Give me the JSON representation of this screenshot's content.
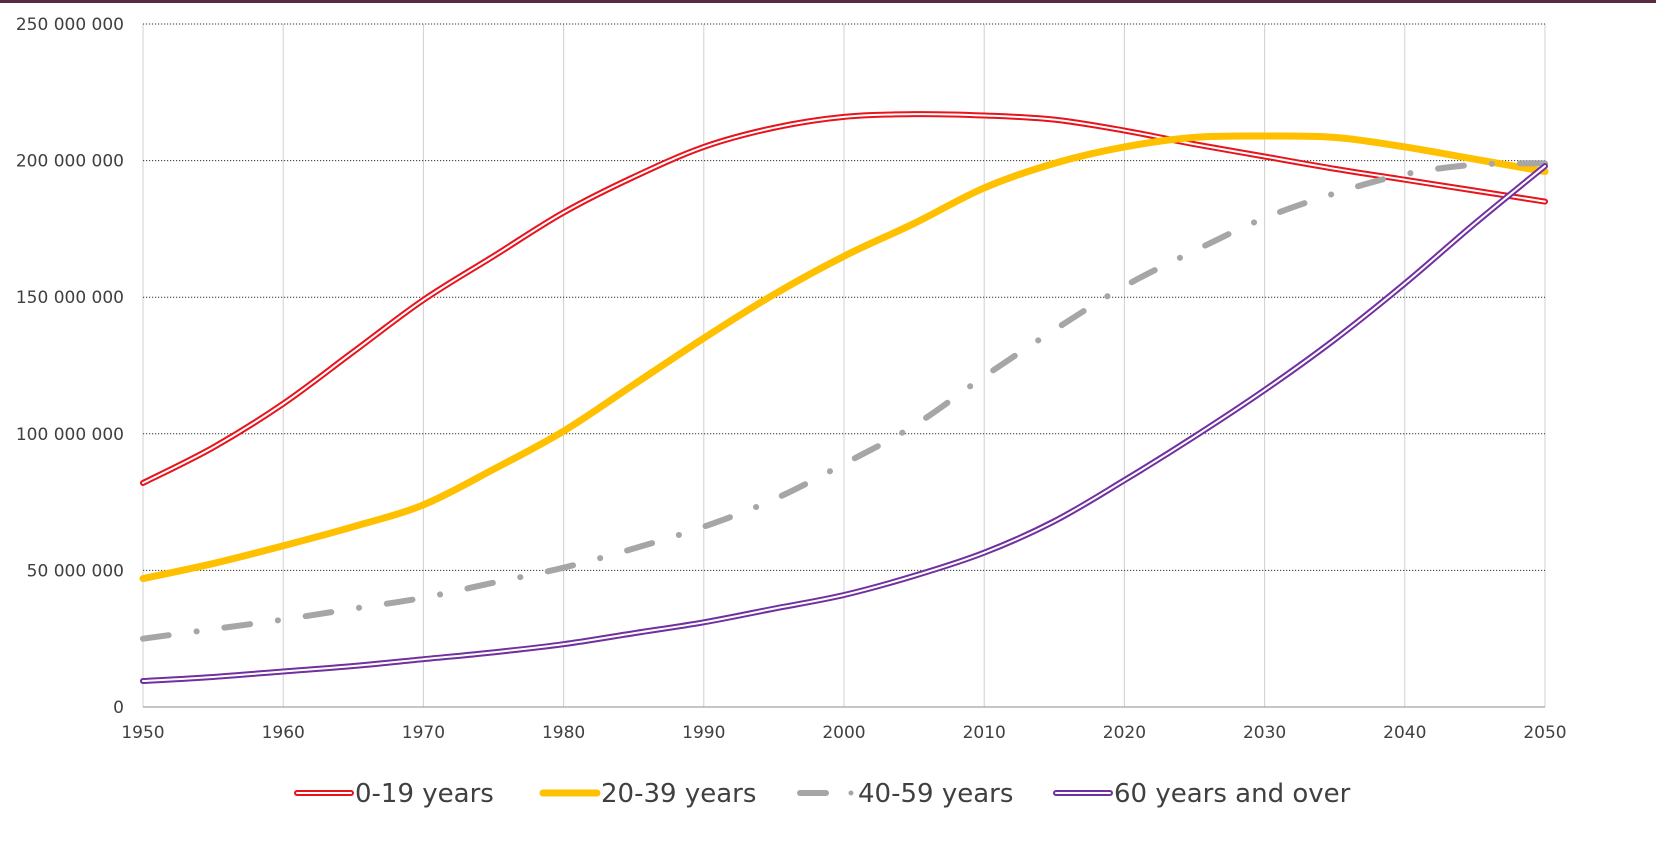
{
  "chart_data": {
    "type": "line",
    "title": "",
    "xlabel": "",
    "ylabel": "",
    "x": [
      1950,
      1955,
      1960,
      1965,
      1970,
      1975,
      1980,
      1985,
      1990,
      1995,
      2000,
      2005,
      2010,
      2015,
      2020,
      2025,
      2030,
      2035,
      2040,
      2045,
      2050
    ],
    "xlim": [
      1950,
      2050
    ],
    "ylim": [
      0,
      250000000
    ],
    "x_ticks": [
      "1950",
      "1960",
      "1970",
      "1980",
      "1990",
      "2000",
      "2010",
      "2020",
      "2030",
      "2040",
      "2050"
    ],
    "y_ticks": [
      "0",
      "50 000 000",
      "100 000 000",
      "150 000 000",
      "200 000 000",
      "250 000 000"
    ],
    "grid": "horizontal dotted, vertical solid light grey",
    "legend_position": "bottom",
    "series": [
      {
        "name": "0-19 years",
        "style": "double-line",
        "color": "#e8141c",
        "values": [
          82000000,
          95000000,
          111000000,
          130000000,
          149000000,
          165000000,
          181000000,
          194000000,
          205000000,
          212000000,
          216000000,
          217000000,
          216500000,
          215000000,
          211000000,
          206000000,
          201500000,
          197000000,
          193000000,
          189000000,
          185000000
        ]
      },
      {
        "name": "20-39 years",
        "style": "thick-solid",
        "color": "#ffc000",
        "values": [
          47000000,
          52500000,
          59000000,
          66000000,
          74000000,
          87000000,
          101000000,
          118000000,
          135000000,
          151000000,
          165000000,
          177000000,
          190000000,
          199000000,
          205000000,
          208500000,
          209000000,
          208500000,
          205000000,
          200500000,
          196000000
        ]
      },
      {
        "name": "40-59 years",
        "style": "dash-dot",
        "color": "#a6a6a6",
        "values": [
          25000000,
          28500000,
          32000000,
          36000000,
          40000000,
          45500000,
          51000000,
          58000000,
          66000000,
          76000000,
          89000000,
          103000000,
          121000000,
          138000000,
          154000000,
          167000000,
          179000000,
          188000000,
          195000000,
          198500000,
          199000000
        ]
      },
      {
        "name": "60 years and over",
        "style": "double-line",
        "color": "#7030a0",
        "values": [
          9500000,
          11000000,
          13000000,
          15000000,
          17500000,
          20000000,
          23000000,
          27000000,
          31000000,
          36000000,
          41000000,
          48000000,
          56500000,
          68000000,
          83000000,
          99000000,
          116000000,
          134500000,
          155000000,
          177000000,
          198000000
        ]
      }
    ]
  }
}
